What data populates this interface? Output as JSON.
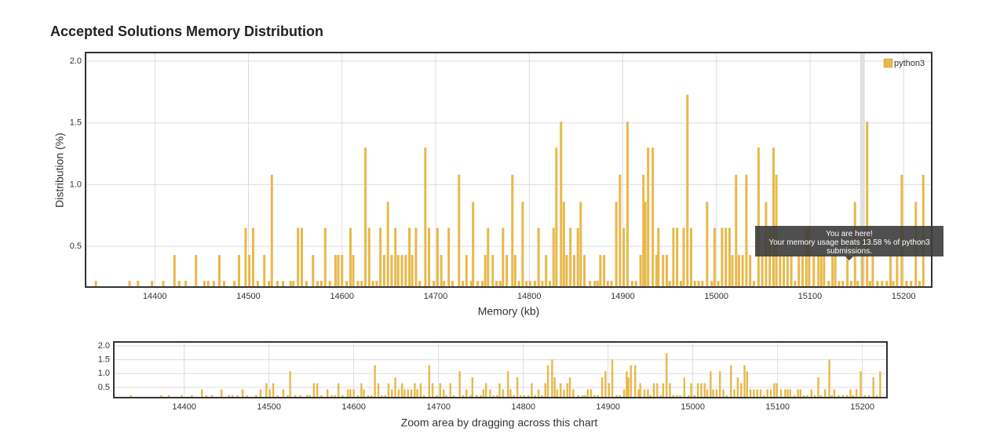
{
  "chart_data": {
    "type": "bar",
    "title": "Accepted Solutions Memory Distribution",
    "xlabel": "Memory (kb)",
    "ylabel": "Distribution (%)",
    "x": [
      14337,
      14373,
      14382,
      14397,
      14409,
      14421,
      14426,
      14433,
      14444,
      14453,
      14457,
      14463,
      14469,
      14474,
      14485,
      14490,
      14497,
      14501,
      14505,
      14510,
      14517,
      14522,
      14525,
      14531,
      14537,
      14545,
      14548,
      14553,
      14557,
      14562,
      14569,
      14574,
      14578,
      14582,
      14587,
      14593,
      14596,
      14600,
      14605,
      14609,
      14612,
      14617,
      14621,
      14625,
      14629,
      14633,
      14637,
      14641,
      14645,
      14649,
      14653,
      14657,
      14660,
      14664,
      14668,
      14672,
      14675,
      14679,
      14683,
      14689,
      14693,
      14698,
      14702,
      14706,
      14709,
      14714,
      14718,
      14725,
      14729,
      14733,
      14738,
      14740,
      14745,
      14750,
      14753,
      14756,
      14761,
      14765,
      14769,
      14772,
      14776,
      14782,
      14785,
      14789,
      14793,
      14797,
      14801,
      14806,
      14810,
      14814,
      14818,
      14822,
      14826,
      14829,
      14834,
      14837,
      14840,
      14844,
      14848,
      14852,
      14855,
      14859,
      14865,
      14870,
      14873,
      14876,
      14880,
      14884,
      14888,
      14893,
      14897,
      14901,
      14905,
      14910,
      14914,
      14919,
      14922,
      14924,
      14927,
      14932,
      14936,
      14938,
      14943,
      14947,
      14950,
      14954,
      14958,
      14962,
      14965,
      14969,
      14973,
      14977,
      14981,
      14985,
      14990,
      14995,
      14998,
      15002,
      15006,
      15010,
      15014,
      15017,
      15021,
      15024,
      15028,
      15032,
      15036,
      15040,
      15045,
      15049,
      15053,
      15057,
      15061,
      15064,
      15068,
      15072,
      15076,
      15080,
      15084,
      15088,
      15092,
      15096,
      15099,
      15104,
      15109,
      15112,
      15115,
      15120,
      15124,
      15127,
      15131,
      15135,
      15140,
      15144,
      15148,
      15151,
      15156,
      15161,
      15164,
      15167,
      15172,
      15177,
      15182,
      15186,
      15189,
      15193,
      15198,
      15203,
      15208,
      15213,
      15217,
      15221
    ],
    "series": [
      {
        "name": "python3",
        "color": "#e8b84a",
        "values": [
          0.22,
          0.22,
          0.22,
          0.22,
          0.22,
          0.43,
          0.22,
          0.22,
          0.43,
          0.22,
          0.22,
          0.22,
          0.43,
          0.22,
          0.22,
          0.43,
          0.65,
          0.43,
          0.65,
          0.22,
          0.43,
          0.22,
          1.08,
          0.22,
          0.22,
          0.22,
          0.22,
          0.65,
          0.65,
          0.22,
          0.43,
          0.22,
          0.22,
          0.65,
          0.22,
          0.43,
          0.43,
          0.43,
          0.22,
          0.65,
          0.43,
          0.22,
          0.22,
          1.3,
          0.65,
          0.22,
          0.22,
          0.65,
          0.43,
          0.86,
          0.43,
          0.65,
          0.43,
          0.43,
          0.43,
          0.65,
          0.43,
          0.65,
          0.22,
          1.3,
          0.65,
          0.22,
          0.65,
          0.43,
          0.22,
          0.65,
          0.22,
          1.08,
          0.22,
          0.43,
          0.22,
          0.86,
          0.22,
          0.22,
          0.43,
          0.65,
          0.43,
          0.22,
          0.22,
          0.65,
          0.43,
          1.08,
          0.43,
          0.22,
          0.86,
          0.22,
          0.22,
          0.22,
          0.65,
          0.22,
          0.43,
          0.22,
          0.65,
          1.3,
          1.51,
          0.86,
          0.43,
          0.65,
          0.43,
          0.65,
          0.86,
          0.43,
          0.22,
          0.22,
          0.22,
          0.43,
          0.43,
          0.22,
          0.22,
          0.86,
          1.08,
          0.65,
          1.51,
          0.22,
          0.22,
          0.43,
          1.08,
          0.86,
          1.3,
          1.3,
          0.43,
          0.65,
          0.43,
          0.43,
          0.22,
          0.65,
          0.65,
          0.22,
          0.65,
          1.73,
          0.65,
          0.22,
          0.22,
          0.22,
          0.86,
          0.22,
          0.65,
          0.22,
          0.65,
          0.65,
          0.65,
          0.43,
          1.08,
          0.43,
          0.43,
          1.08,
          0.43,
          0.22,
          1.3,
          0.43,
          0.86,
          0.65,
          1.3,
          1.08,
          0.43,
          0.43,
          0.43,
          0.43,
          0.22,
          0.43,
          0.43,
          0.65,
          0.65,
          0.43,
          0.43,
          0.43,
          0.43,
          0.22,
          0.43,
          0.43,
          0.22,
          0.22,
          0.43,
          0.22,
          0.86,
          0.22,
          0.43,
          1.51,
          0.22,
          0.43,
          0.22,
          0.22,
          0.22,
          0.43,
          0.22,
          0.43,
          1.08,
          0.22,
          0.22,
          0.86,
          0.22,
          1.08
        ]
      }
    ],
    "xlim": [
      14326,
      15230
    ],
    "ylim": [
      0.17,
      2.07
    ],
    "xticks": [
      14400,
      14500,
      14600,
      14700,
      14800,
      14900,
      15000,
      15100,
      15200
    ],
    "yticks": [
      0.5,
      {
        "value": 1,
        "label": "1.0"
      },
      1.5,
      {
        "value": 2,
        "label": "2.0"
      }
    ],
    "grid": true,
    "legend": "upper right",
    "highlight": 15156,
    "annotation": {
      "title": "You are here!",
      "text": "Your memory usage beats 13.58 % of python3 submissions."
    },
    "zoom": {
      "caption": "Zoom area by dragging across this chart",
      "xlim": [
        14317,
        15229
      ],
      "ylim": [
        0.13,
        2.14
      ],
      "xticks": [
        14400,
        14500,
        14600,
        14700,
        14800,
        14900,
        15000,
        15100,
        15200
      ],
      "yticks": [
        0.5,
        {
          "value": 1,
          "label": "1.0"
        },
        1.5,
        {
          "value": 2,
          "label": "2.0"
        }
      ]
    }
  }
}
